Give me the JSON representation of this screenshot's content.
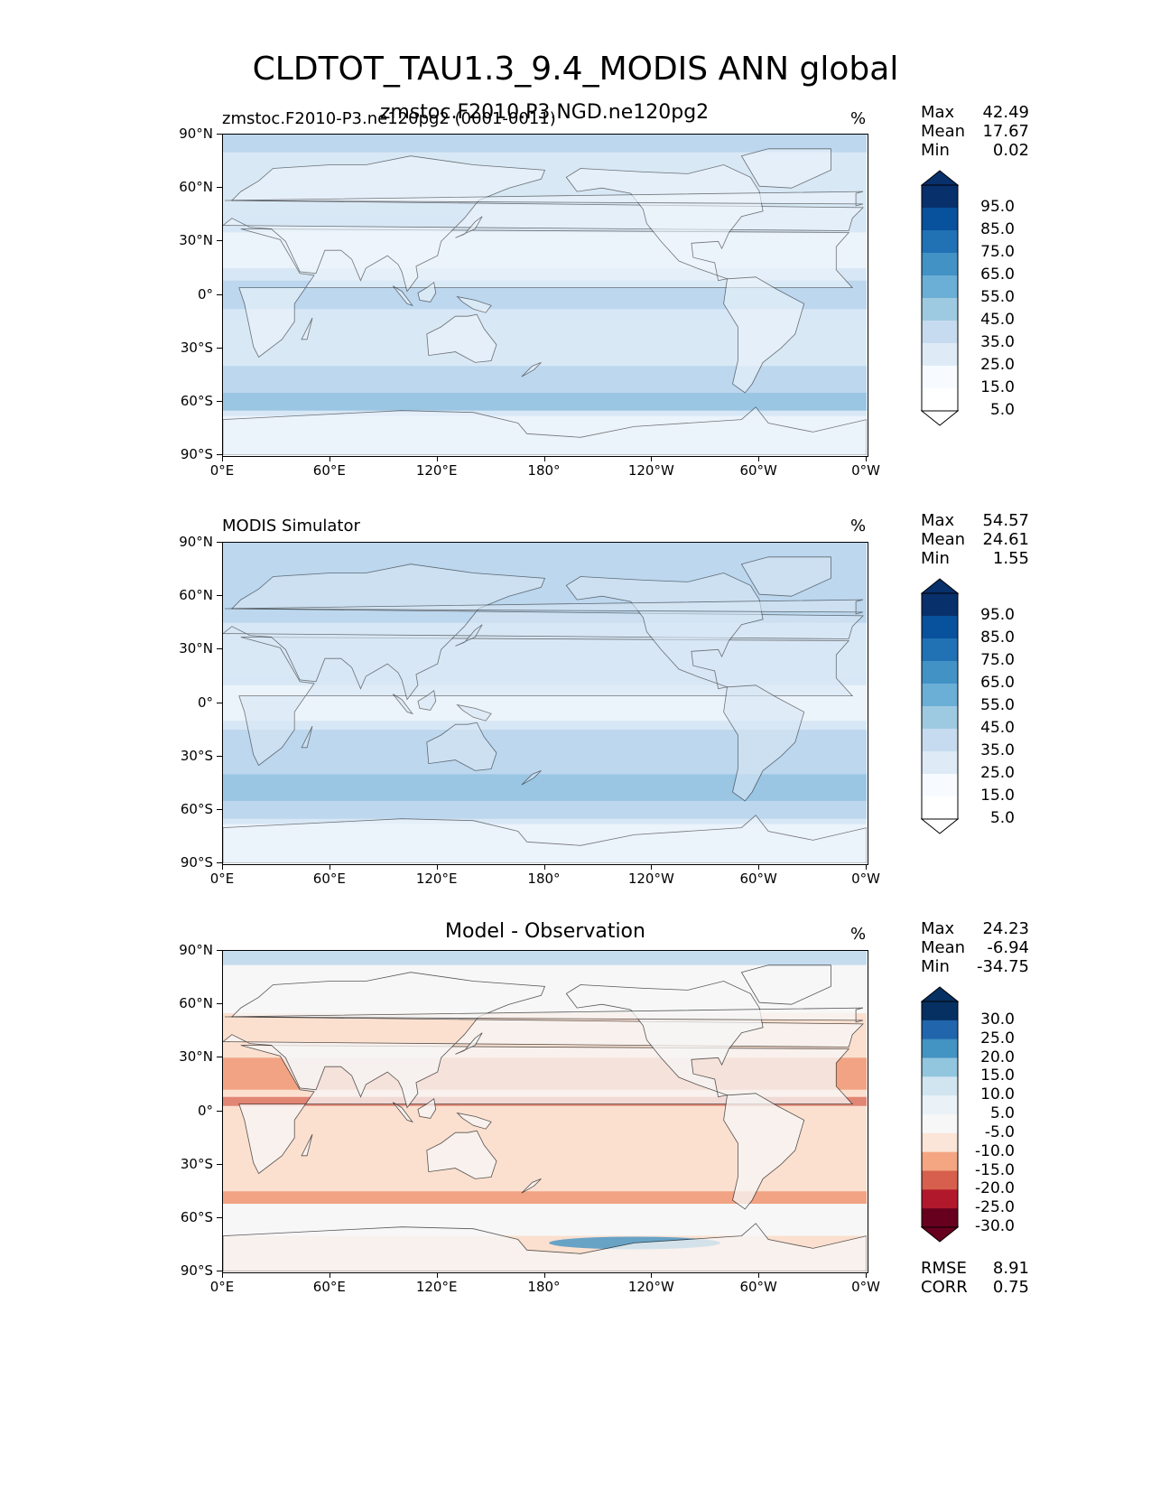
{
  "title": "CLDTOT_TAU1.3_9.4_MODIS ANN global",
  "panels": [
    {
      "left_title": "zmstoc.F2010-P3.ne120pg2 (0001-0011)",
      "center_title": "zmstoc.F2010.P3.NGD.ne120pg2",
      "unit": "%",
      "stats": {
        "max_label": "Max",
        "max": "42.49",
        "mean_label": "Mean",
        "mean": "17.67",
        "min_label": "Min",
        "min": "0.02"
      },
      "colorbar": {
        "labels": [
          "95.0",
          "85.0",
          "75.0",
          "65.0",
          "55.0",
          "45.0",
          "35.0",
          "25.0",
          "15.0",
          "5.0"
        ],
        "colors": [
          "#08306b",
          "#08519c",
          "#2171b5",
          "#4292c6",
          "#6baed6",
          "#9ecae1",
          "#c6dbef",
          "#deebf7",
          "#f7fbff",
          "#ffffff"
        ]
      }
    },
    {
      "left_title": "MODIS Simulator",
      "center_title": "",
      "unit": "%",
      "stats": {
        "max_label": "Max",
        "max": "54.57",
        "mean_label": "Mean",
        "mean": "24.61",
        "min_label": "Min",
        "min": "1.55"
      },
      "colorbar": {
        "labels": [
          "95.0",
          "85.0",
          "75.0",
          "65.0",
          "55.0",
          "45.0",
          "35.0",
          "25.0",
          "15.0",
          "5.0"
        ],
        "colors": [
          "#08306b",
          "#08519c",
          "#2171b5",
          "#4292c6",
          "#6baed6",
          "#9ecae1",
          "#c6dbef",
          "#deebf7",
          "#f7fbff",
          "#ffffff"
        ]
      }
    },
    {
      "left_title": "",
      "center_title": "Model - Observation",
      "unit": "%",
      "stats": {
        "max_label": "Max",
        "max": "24.23",
        "mean_label": "Mean",
        "mean": "-6.94",
        "min_label": "Min",
        "min": "-34.75"
      },
      "colorbar": {
        "labels": [
          "30.0",
          "25.0",
          "20.0",
          "15.0",
          "10.0",
          "5.0",
          "-5.0",
          "-10.0",
          "-15.0",
          "-20.0",
          "-25.0",
          "-30.0"
        ],
        "colors": [
          "#053061",
          "#2166ac",
          "#4393c3",
          "#92c5de",
          "#d1e5f0",
          "#eaf2f7",
          "#f7f7f7",
          "#fbe5d8",
          "#f4a582",
          "#d6604d",
          "#b2182b",
          "#67001f"
        ]
      },
      "extra_stats": {
        "rmse_label": "RMSE",
        "rmse": "8.91",
        "corr_label": "CORR",
        "corr": "0.75"
      }
    }
  ],
  "axes": {
    "lat_ticks": [
      "90°N",
      "60°N",
      "30°N",
      "0°",
      "30°S",
      "60°S",
      "90°S"
    ],
    "lon_ticks": [
      "0°E",
      "60°E",
      "120°E",
      "180°",
      "120°W",
      "60°W",
      "0°W"
    ]
  },
  "colors": {
    "blue_map_base": "#d8e7f5",
    "blue_map_light": "#eef5fc",
    "blue_map_mid": "#b7d3ec",
    "blue_map_dark": "#8fbfe0",
    "diff_base": "#f7f7f7",
    "diff_red_light": "#fbe0d0",
    "diff_red_mid": "#f1a384",
    "diff_red_dark": "#d6604d",
    "diff_blue": "#c5dcef"
  }
}
